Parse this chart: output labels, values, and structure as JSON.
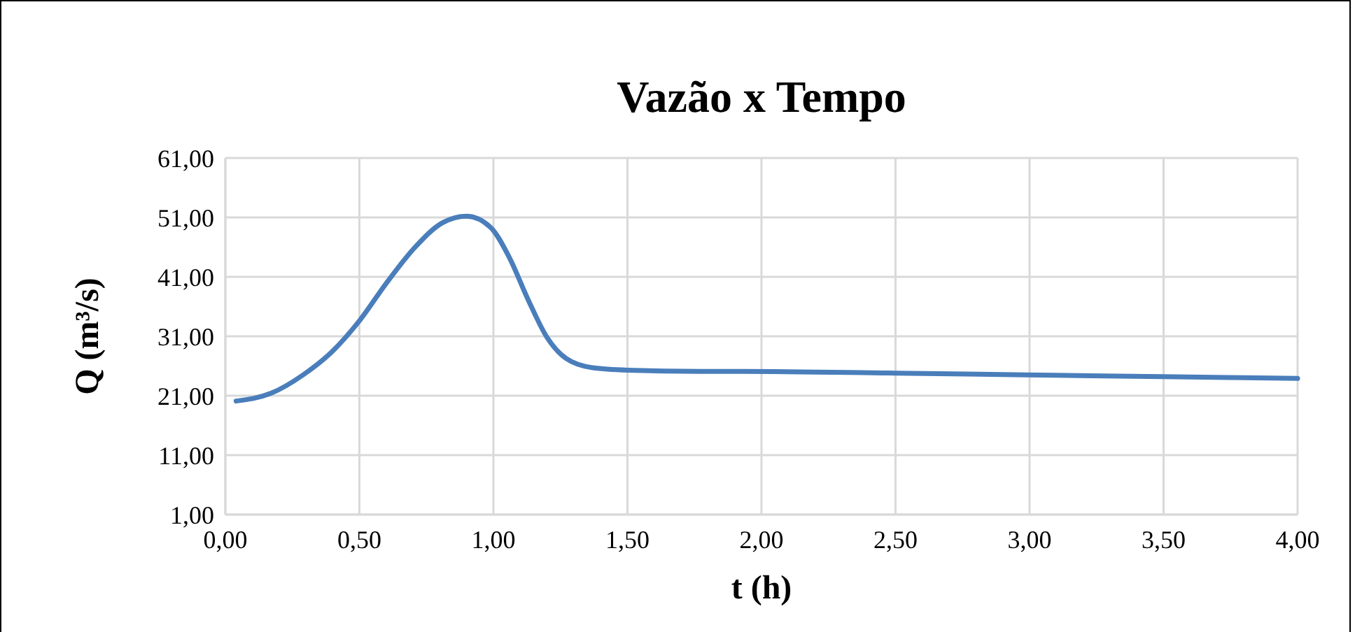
{
  "chart_data": {
    "type": "line",
    "title": "Vazão x Tempo",
    "xlabel": "t (h)",
    "ylabel": "Q (m³/s)",
    "xlim": [
      0,
      4
    ],
    "ylim": [
      1,
      61
    ],
    "xticks": [
      {
        "value": 0,
        "label": "0,00"
      },
      {
        "value": 0.5,
        "label": "0,50"
      },
      {
        "value": 1,
        "label": "1,00"
      },
      {
        "value": 1.5,
        "label": "1,50"
      },
      {
        "value": 2,
        "label": "2,00"
      },
      {
        "value": 2.5,
        "label": "2,50"
      },
      {
        "value": 3,
        "label": "3,00"
      },
      {
        "value": 3.5,
        "label": "3,50"
      },
      {
        "value": 4,
        "label": "4,00"
      }
    ],
    "yticks": [
      {
        "value": 1,
        "label": "1,00"
      },
      {
        "value": 11,
        "label": "11,00"
      },
      {
        "value": 21,
        "label": "21,00"
      },
      {
        "value": 31,
        "label": "31,00"
      },
      {
        "value": 41,
        "label": "41,00"
      },
      {
        "value": 51,
        "label": "51,00"
      },
      {
        "value": 61,
        "label": "61,00"
      }
    ],
    "grid": true,
    "marker": "none",
    "line_style": "solid",
    "series": [
      {
        "color": "#4a7ebb",
        "x": [
          0.04,
          0.17,
          0.29,
          0.4,
          0.5,
          0.6,
          0.71,
          0.81,
          0.9,
          0.99,
          1.06,
          1.13,
          1.2,
          1.27,
          1.37,
          1.5,
          1.77,
          1.93,
          2.5,
          2.99,
          3.5,
          4.0
        ],
        "values": [
          20.1,
          21.4,
          24.5,
          28.5,
          33.6,
          39.9,
          46.1,
          50.1,
          51.2,
          49.3,
          44.2,
          37.1,
          30.8,
          27.3,
          25.7,
          25.3,
          25.1,
          25.1,
          24.8,
          24.5,
          24.2,
          23.9
        ]
      }
    ]
  }
}
